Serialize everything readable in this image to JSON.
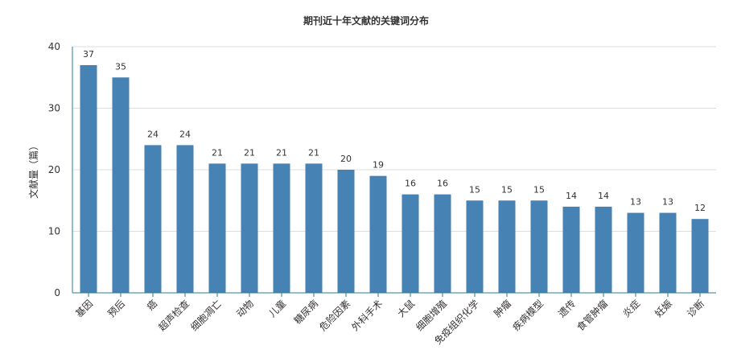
{
  "chart_data": {
    "type": "bar",
    "title": "期刊近十年文献的关键词分布",
    "xlabel": "",
    "ylabel": "文献量（篇）",
    "ylim": [
      0,
      40
    ],
    "yticks": [
      0,
      10,
      20,
      30,
      40
    ],
    "grid": true,
    "legend": "none",
    "categories": [
      "基因",
      "预后",
      "癌",
      "超声检查",
      "细胞凋亡",
      "动物",
      "儿童",
      "糖尿病",
      "危险因素",
      "外科手术",
      "大鼠",
      "细胞增殖",
      "免疫组织化学",
      "肿瘤",
      "疾病模型",
      "遗传",
      "食管肿瘤",
      "炎症",
      "妊娠",
      "诊断"
    ],
    "values": [
      37,
      35,
      24,
      24,
      21,
      21,
      21,
      21,
      20,
      19,
      16,
      16,
      15,
      15,
      15,
      14,
      14,
      13,
      13,
      12
    ]
  },
  "colors": {
    "bar": "#4682b4",
    "axis": "#2e7d96",
    "grid": "#dddddd",
    "text": "#333333",
    "title": "#333333"
  }
}
